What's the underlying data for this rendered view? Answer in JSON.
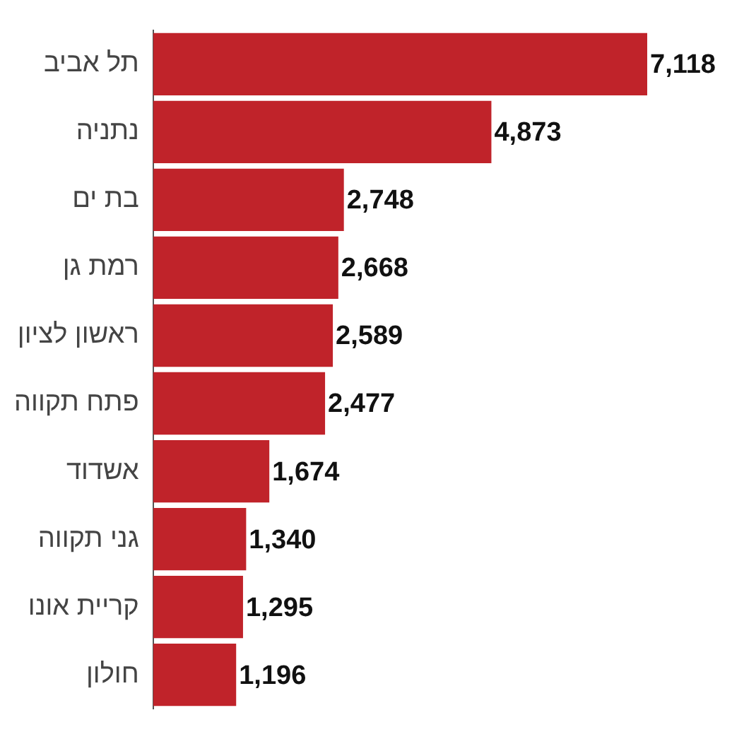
{
  "chart_data": {
    "type": "bar",
    "orientation": "horizontal",
    "categories": [
      "תל אביב",
      "נתניה",
      "בת ים",
      "רמת גן",
      "ראשון לציון",
      "פתח תקווה",
      "אשדוד",
      "גני תקווה",
      "קריית אונו",
      "חולון"
    ],
    "values": [
      7118,
      4873,
      2748,
      2668,
      2589,
      2477,
      1674,
      1340,
      1295,
      1196
    ],
    "color": "#c0232a",
    "data_labels": true,
    "value_labels": [
      "7,118",
      "4,873",
      "2,748",
      "2,668",
      "2,589",
      "2,477",
      "1,674",
      "1,340",
      "1,295",
      "1,196"
    ],
    "grid": false,
    "legend": false
  }
}
